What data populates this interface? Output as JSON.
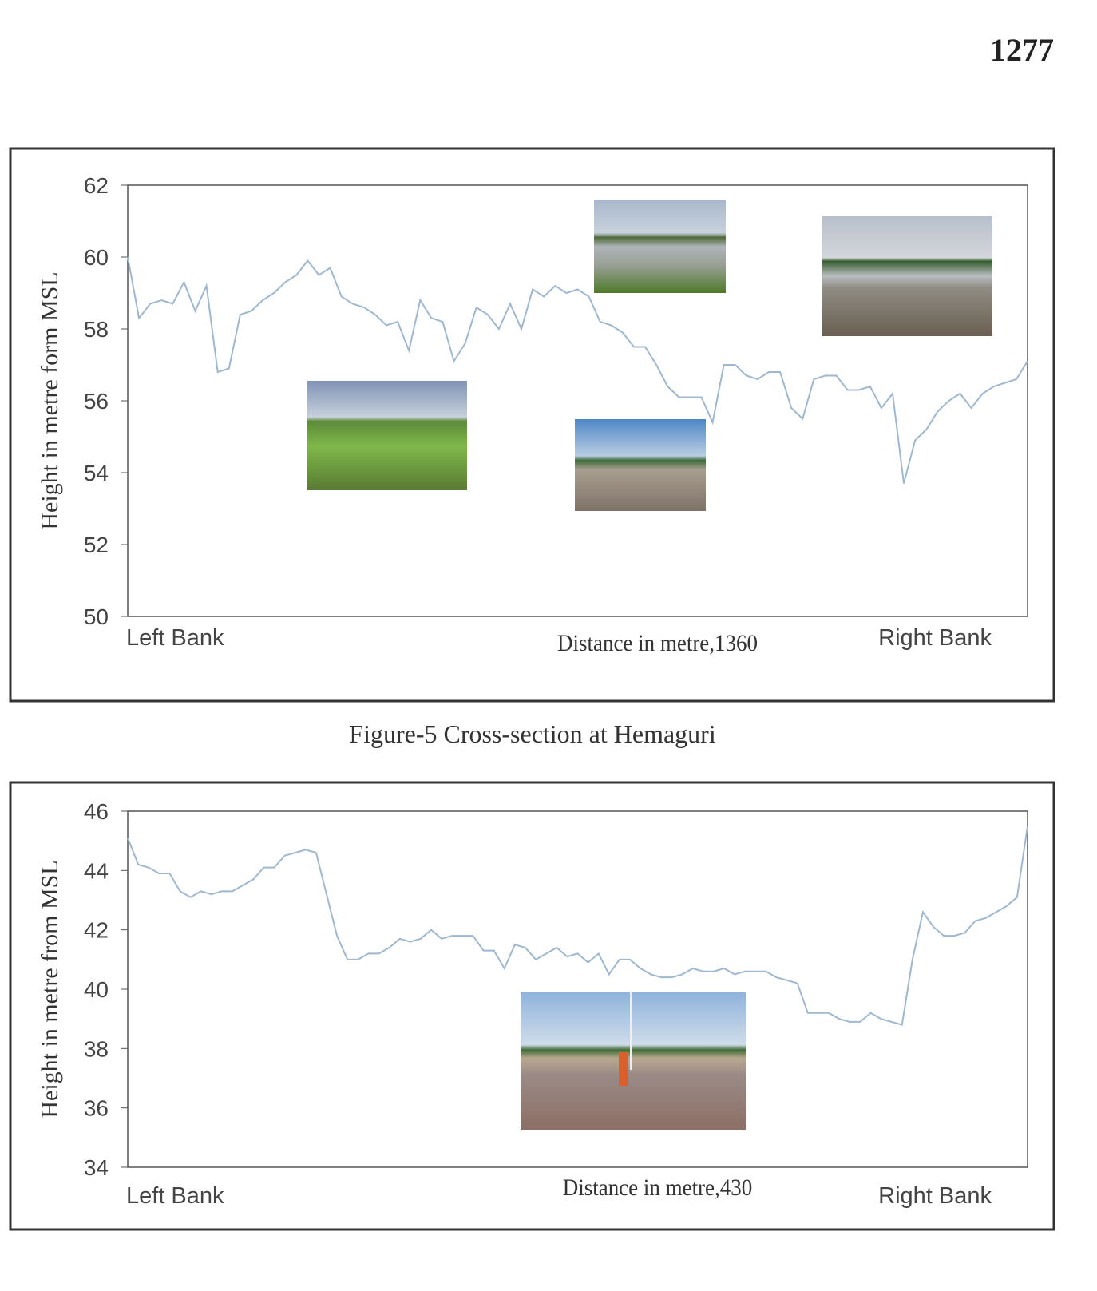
{
  "page_number": "1277",
  "caption": "Figure-5 Cross-section at Hemaguri",
  "chart_data": [
    {
      "type": "line",
      "y_label": "Height in metre form MSL",
      "x_label": "Distance in metre,1360",
      "left_label": "Left Bank",
      "right_label": "Right Bank",
      "color": "#9fb8cf",
      "ylim": [
        50,
        62
      ],
      "yticks": [
        50,
        52,
        54,
        56,
        58,
        60,
        62
      ],
      "values": [
        60.0,
        58.3,
        58.7,
        58.8,
        58.7,
        59.3,
        58.5,
        59.2,
        56.8,
        56.9,
        58.4,
        58.5,
        58.8,
        59.0,
        59.3,
        59.5,
        59.9,
        59.5,
        59.7,
        58.9,
        58.7,
        58.6,
        58.4,
        58.1,
        58.2,
        57.4,
        58.8,
        58.3,
        58.2,
        57.1,
        57.6,
        58.6,
        58.4,
        58.0,
        58.7,
        58.0,
        59.1,
        58.9,
        59.2,
        59.0,
        59.1,
        58.9,
        58.2,
        58.1,
        57.9,
        57.5,
        57.5,
        57.0,
        56.4,
        56.1,
        56.1,
        56.1,
        55.4,
        57.0,
        57.0,
        56.7,
        56.6,
        56.8,
        56.8,
        55.8,
        55.5,
        56.6,
        56.7,
        56.7,
        56.3,
        56.3,
        56.4,
        55.8,
        56.2,
        53.7,
        54.9,
        55.2,
        55.7,
        56.0,
        56.2,
        55.8,
        56.2,
        56.4,
        56.5,
        56.6,
        57.1
      ]
    },
    {
      "type": "line",
      "y_label": "Height in metre from MSL",
      "x_label": "Distance in metre,430",
      "left_label": "Left Bank",
      "right_label": "Right Bank",
      "color": "#9fb8cf",
      "ylim": [
        34,
        46
      ],
      "yticks": [
        34,
        36,
        38,
        40,
        42,
        44,
        46
      ],
      "values": [
        45.1,
        44.2,
        44.1,
        43.9,
        43.9,
        43.3,
        43.1,
        43.3,
        43.2,
        43.3,
        43.3,
        43.5,
        43.7,
        44.1,
        44.1,
        44.5,
        44.6,
        44.7,
        44.6,
        43.2,
        41.8,
        41.0,
        41.0,
        41.2,
        41.2,
        41.4,
        41.7,
        41.6,
        41.7,
        42.0,
        41.7,
        41.8,
        41.8,
        41.8,
        41.3,
        41.3,
        40.7,
        41.5,
        41.4,
        41.0,
        41.2,
        41.4,
        41.1,
        41.2,
        40.9,
        41.2,
        40.5,
        41.0,
        41.0,
        40.7,
        40.5,
        40.4,
        40.4,
        40.5,
        40.7,
        40.6,
        40.6,
        40.7,
        40.5,
        40.6,
        40.6,
        40.6,
        40.4,
        40.3,
        40.2,
        39.2,
        39.2,
        39.2,
        39.0,
        38.9,
        38.9,
        39.2,
        39.0,
        38.9,
        38.8,
        41.0,
        42.6,
        42.1,
        41.8,
        41.8,
        41.9,
        42.3,
        42.4,
        42.6,
        42.8,
        43.1,
        45.5
      ]
    }
  ]
}
